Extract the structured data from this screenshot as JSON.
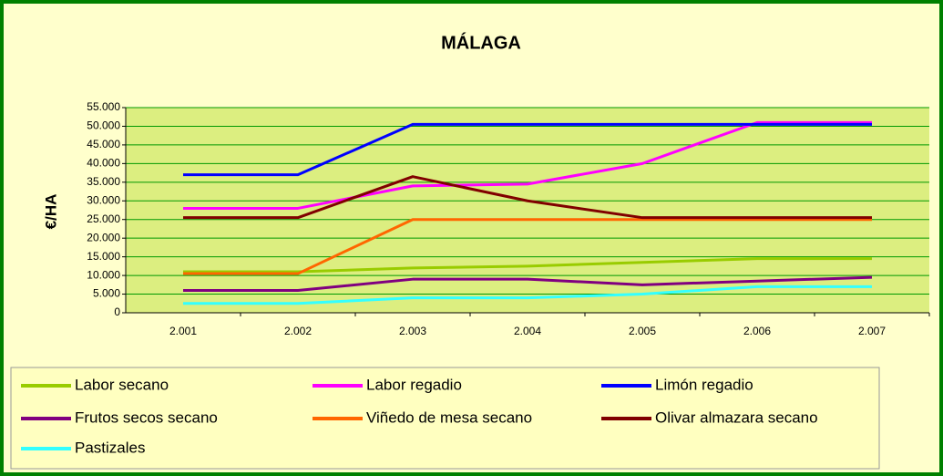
{
  "chart_data": {
    "type": "line",
    "title": "MÁLAGA",
    "y_label": "€/HA",
    "categories": [
      "2.001",
      "2.002",
      "2.003",
      "2.004",
      "2.005",
      "2.006",
      "2.007"
    ],
    "series": [
      {
        "name": "Labor secano",
        "color": "#99cc00",
        "values": [
          11000,
          11000,
          12000,
          12500,
          13500,
          14500,
          14500
        ]
      },
      {
        "name": "Labor regadio",
        "color": "#ff00ff",
        "values": [
          28000,
          28000,
          34000,
          34500,
          40000,
          51000,
          51000
        ]
      },
      {
        "name": "Limón regadio",
        "color": "#0000ff",
        "values": [
          37000,
          37000,
          50500,
          50500,
          50500,
          50500,
          50500
        ]
      },
      {
        "name": "Frutos secos secano",
        "color": "#800080",
        "values": [
          6000,
          6000,
          9000,
          9000,
          7500,
          8500,
          9500
        ]
      },
      {
        "name": "Viñedo de mesa secano",
        "color": "#ff6600",
        "values": [
          10500,
          10500,
          25000,
          25000,
          25000,
          25000,
          25000
        ]
      },
      {
        "name": "Olivar almazara secano",
        "color": "#800000",
        "values": [
          25500,
          25500,
          36500,
          30000,
          25500,
          25500,
          25500
        ]
      },
      {
        "name": "Pastizales",
        "color": "#33ffff",
        "values": [
          2500,
          2500,
          4000,
          4000,
          5000,
          7000,
          7000
        ]
      }
    ],
    "ylim": [
      0,
      55000
    ],
    "yticks": [
      0,
      {
        "value": 5000,
        "label": "5.000"
      },
      {
        "value": 10000,
        "label": "10.000"
      },
      {
        "value": 15000,
        "label": "15.000"
      },
      {
        "value": 20000,
        "label": "20.000"
      },
      {
        "value": 25000,
        "label": "25.000"
      },
      {
        "value": 30000,
        "label": "30.000"
      },
      {
        "value": 35000,
        "label": "35.000"
      },
      {
        "value": 40000,
        "label": "40.000"
      },
      {
        "value": 45000,
        "label": "45.000"
      },
      {
        "value": 50000,
        "label": "50.000"
      },
      {
        "value": 55000,
        "label": "55.000"
      }
    ],
    "grid": true,
    "legend": "bottom"
  }
}
